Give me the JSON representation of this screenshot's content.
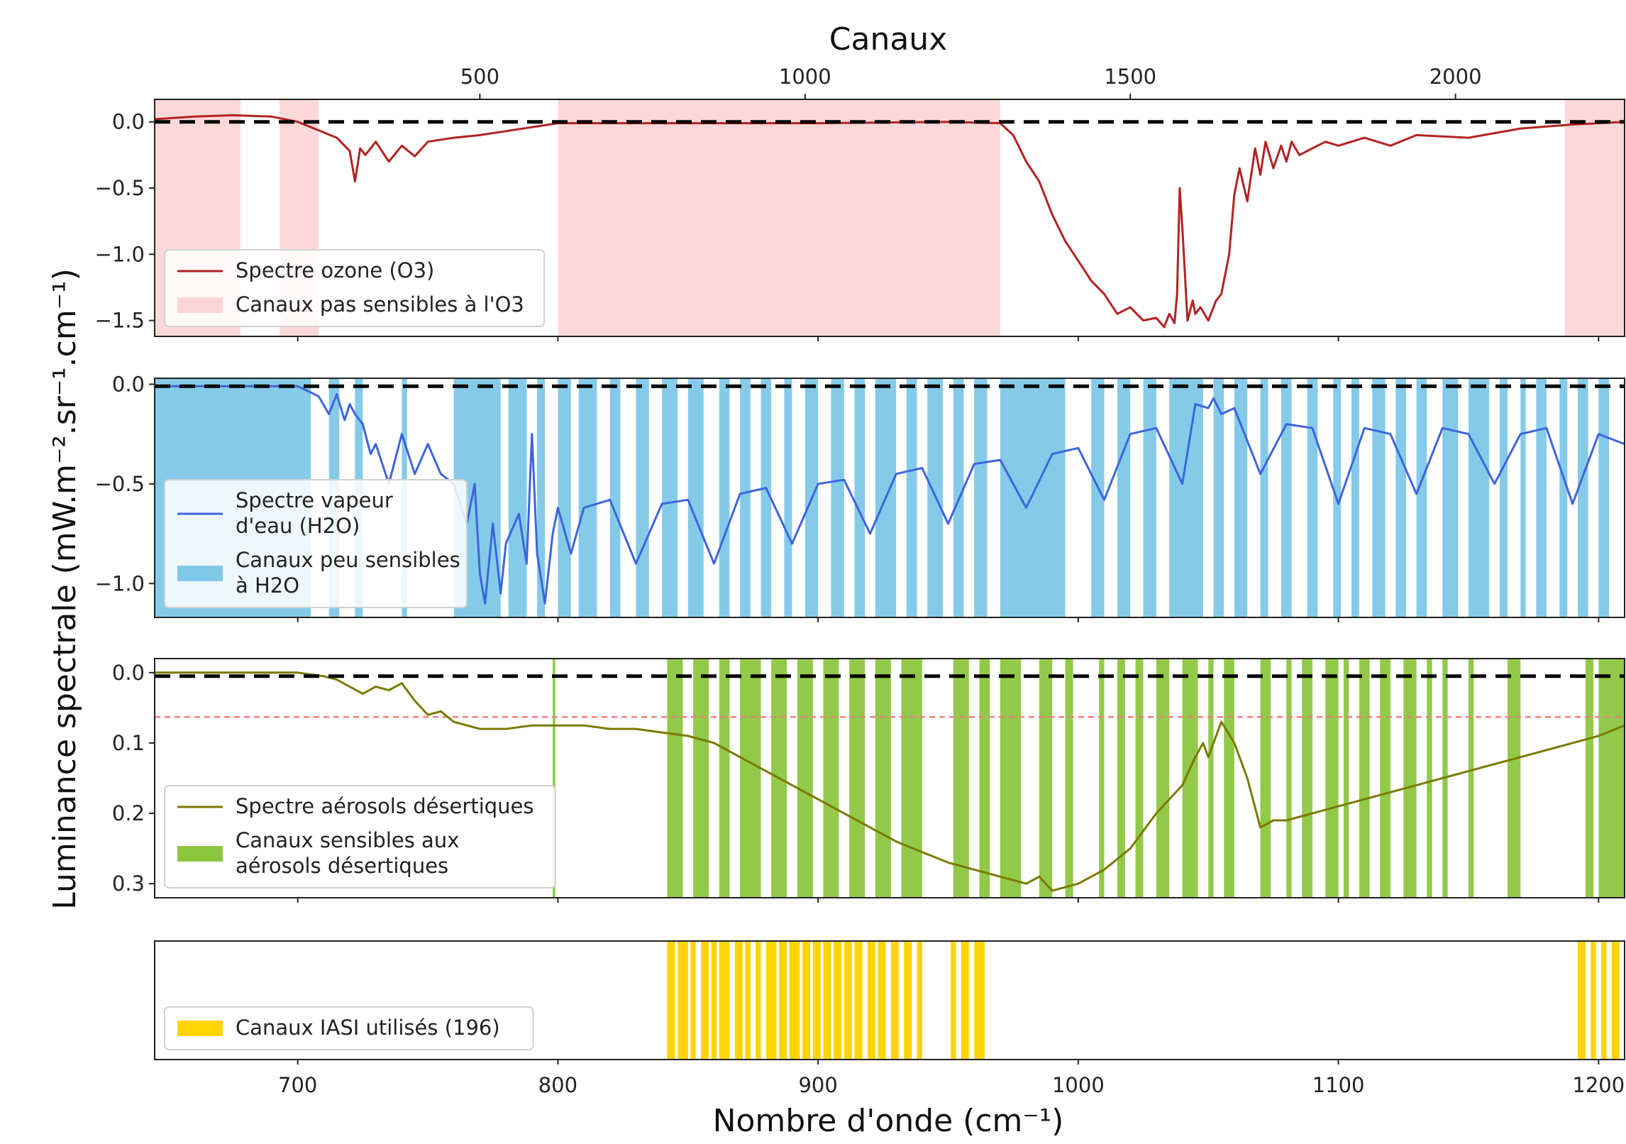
{
  "chart_data": {
    "type": "line",
    "top_axis": {
      "label": "Canaux",
      "channel_offset_cm": 645,
      "channel_step_cm": 0.25,
      "ticks": [
        {
          "channel": 500,
          "label": "500"
        },
        {
          "channel": 1000,
          "label": "1000"
        },
        {
          "channel": 1500,
          "label": "1500"
        },
        {
          "channel": 2000,
          "label": "2000"
        }
      ]
    },
    "xlabel": "Nombre d'onde (cm⁻¹)",
    "ylabel": "Luminance spectrale (mW.m⁻².sr⁻¹.cm⁻¹)",
    "xlim": [
      645,
      1210
    ],
    "x_ticks": [
      {
        "value": 700,
        "label": "700"
      },
      {
        "value": 800,
        "label": "800"
      },
      {
        "value": 900,
        "label": "900"
      },
      {
        "value": 1000,
        "label": "1000"
      },
      {
        "value": 1100,
        "label": "1100"
      },
      {
        "value": 1200,
        "label": "1200"
      }
    ],
    "panels": [
      {
        "key": "ozone",
        "ylim": [
          -1.62,
          0.17
        ],
        "inverted": false,
        "y_ticks": [
          {
            "value": 0.0,
            "label": "0.0"
          },
          {
            "value": -0.5,
            "label": "−0.5"
          },
          {
            "value": -1.0,
            "label": "−1.0"
          },
          {
            "value": -1.5,
            "label": "−1.5"
          }
        ],
        "zero_line": 0.0,
        "line_color": "#b22222",
        "band_color": "#fcd6d6",
        "band_opacity": 0.95,
        "bands": [
          [
            645,
            678
          ],
          [
            693,
            708
          ],
          [
            800,
            970
          ],
          [
            1187,
            1210
          ]
        ],
        "series": {
          "name": "Spectre ozone (O3)",
          "x": [
            645,
            660,
            675,
            690,
            700,
            710,
            715,
            720,
            722,
            724,
            726,
            730,
            735,
            740,
            745,
            750,
            760,
            770,
            780,
            790,
            800,
            850,
            900,
            950,
            970,
            975,
            980,
            985,
            990,
            995,
            1000,
            1005,
            1010,
            1015,
            1020,
            1025,
            1030,
            1033,
            1035,
            1037,
            1038,
            1039,
            1040,
            1042,
            1044,
            1045,
            1047,
            1050,
            1053,
            1055,
            1058,
            1060,
            1062,
            1065,
            1068,
            1070,
            1072,
            1075,
            1078,
            1080,
            1082,
            1085,
            1090,
            1095,
            1100,
            1110,
            1120,
            1130,
            1150,
            1170,
            1190,
            1210
          ],
          "y": [
            0.02,
            0.04,
            0.05,
            0.04,
            0.0,
            -0.08,
            -0.12,
            -0.22,
            -0.45,
            -0.2,
            -0.25,
            -0.15,
            -0.3,
            -0.18,
            -0.26,
            -0.15,
            -0.12,
            -0.1,
            -0.07,
            -0.04,
            -0.01,
            -0.01,
            -0.01,
            0.0,
            -0.01,
            -0.1,
            -0.3,
            -0.45,
            -0.7,
            -0.9,
            -1.05,
            -1.2,
            -1.3,
            -1.45,
            -1.4,
            -1.5,
            -1.48,
            -1.55,
            -1.45,
            -1.52,
            -1.3,
            -0.5,
            -0.8,
            -1.5,
            -1.35,
            -1.45,
            -1.4,
            -1.5,
            -1.35,
            -1.3,
            -1.0,
            -0.55,
            -0.35,
            -0.6,
            -0.2,
            -0.4,
            -0.15,
            -0.35,
            -0.18,
            -0.3,
            -0.15,
            -0.25,
            -0.2,
            -0.15,
            -0.18,
            -0.12,
            -0.18,
            -0.1,
            -0.12,
            -0.05,
            -0.02,
            0.0
          ]
        },
        "legend": {
          "line": "Spectre ozone (O3)",
          "band": "Canaux pas sensibles à l'O3",
          "anchor": "lower-left"
        }
      },
      {
        "key": "h2o",
        "ylim": [
          -1.17,
          0.03
        ],
        "inverted": false,
        "y_ticks": [
          {
            "value": 0.0,
            "label": "0.0"
          },
          {
            "value": -0.5,
            "label": "−0.5"
          },
          {
            "value": -1.0,
            "label": "−1.0"
          }
        ],
        "zero_line": -0.01,
        "line_color": "#3e64dc",
        "band_color": "#7ec8e8",
        "band_opacity": 0.95,
        "bands": [
          [
            645,
            705
          ],
          [
            712,
            716
          ],
          [
            722,
            725
          ],
          [
            740,
            742
          ],
          [
            760,
            778
          ],
          [
            781,
            788
          ],
          [
            792,
            795
          ],
          [
            800,
            805
          ],
          [
            808,
            815
          ],
          [
            820,
            824
          ],
          [
            830,
            835
          ],
          [
            840,
            846
          ],
          [
            850,
            856
          ],
          [
            862,
            866
          ],
          [
            870,
            874
          ],
          [
            878,
            882
          ],
          [
            887,
            890
          ],
          [
            895,
            900
          ],
          [
            905,
            910
          ],
          [
            914,
            918
          ],
          [
            922,
            930
          ],
          [
            934,
            938
          ],
          [
            942,
            948
          ],
          [
            952,
            956
          ],
          [
            960,
            965
          ],
          [
            970,
            995
          ],
          [
            1005,
            1010
          ],
          [
            1015,
            1020
          ],
          [
            1025,
            1030
          ],
          [
            1035,
            1048
          ],
          [
            1052,
            1056
          ],
          [
            1060,
            1065
          ],
          [
            1070,
            1073
          ],
          [
            1078,
            1082
          ],
          [
            1088,
            1092
          ],
          [
            1098,
            1101
          ],
          [
            1105,
            1108
          ],
          [
            1113,
            1118
          ],
          [
            1122,
            1126
          ],
          [
            1130,
            1134
          ],
          [
            1140,
            1146
          ],
          [
            1150,
            1158
          ],
          [
            1162,
            1165
          ],
          [
            1170,
            1172
          ],
          [
            1176,
            1180
          ],
          [
            1185,
            1188
          ],
          [
            1192,
            1196
          ],
          [
            1200,
            1204
          ]
        ],
        "series": {
          "name": "Spectre vapeur d'eau (H2O)",
          "x": [
            645,
            700,
            708,
            712,
            715,
            718,
            720,
            722,
            725,
            728,
            730,
            735,
            740,
            745,
            750,
            755,
            760,
            765,
            768,
            770,
            772,
            775,
            778,
            780,
            785,
            788,
            790,
            792,
            795,
            798,
            800,
            805,
            810,
            820,
            830,
            840,
            850,
            860,
            870,
            880,
            890,
            900,
            910,
            920,
            930,
            940,
            950,
            960,
            970,
            980,
            990,
            1000,
            1010,
            1020,
            1030,
            1040,
            1045,
            1050,
            1052,
            1055,
            1060,
            1070,
            1080,
            1090,
            1100,
            1110,
            1120,
            1130,
            1140,
            1150,
            1160,
            1170,
            1180,
            1190,
            1200,
            1210
          ],
          "y": [
            -0.01,
            -0.01,
            -0.06,
            -0.15,
            -0.05,
            -0.18,
            -0.1,
            -0.15,
            -0.2,
            -0.35,
            -0.3,
            -0.5,
            -0.25,
            -0.45,
            -0.3,
            -0.45,
            -0.5,
            -0.7,
            -0.5,
            -0.95,
            -1.1,
            -0.7,
            -1.05,
            -0.8,
            -0.65,
            -0.9,
            -0.25,
            -0.85,
            -1.1,
            -0.75,
            -0.62,
            -0.85,
            -0.62,
            -0.58,
            -0.9,
            -0.6,
            -0.58,
            -0.9,
            -0.55,
            -0.52,
            -0.8,
            -0.5,
            -0.48,
            -0.75,
            -0.45,
            -0.42,
            -0.7,
            -0.4,
            -0.38,
            -0.62,
            -0.35,
            -0.32,
            -0.58,
            -0.25,
            -0.22,
            -0.5,
            -0.1,
            -0.12,
            -0.07,
            -0.15,
            -0.12,
            -0.45,
            -0.2,
            -0.22,
            -0.6,
            -0.22,
            -0.25,
            -0.55,
            -0.22,
            -0.25,
            -0.5,
            -0.25,
            -0.22,
            -0.6,
            -0.25,
            -0.3
          ]
        },
        "legend": {
          "line": [
            "Spectre vapeur",
            "d'eau (H2O)"
          ],
          "band": [
            "Canaux peu sensibles",
            "à H2O"
          ],
          "anchor": "lower-left"
        }
      },
      {
        "key": "aerosol",
        "ylim": [
          0.32,
          -0.02
        ],
        "inverted": true,
        "y_ticks": [
          {
            "value": 0.0,
            "label": "0.0"
          },
          {
            "value": 0.1,
            "label": "0.1"
          },
          {
            "value": 0.2,
            "label": "0.2"
          },
          {
            "value": 0.3,
            "label": "0.3"
          }
        ],
        "zero_line": 0.005,
        "threshold_line": 0.063,
        "line_color": "#7a7a00",
        "band_color": "#8cc63f",
        "band_opacity": 0.95,
        "bands": [
          [
            798,
            799
          ],
          [
            842,
            848
          ],
          [
            852,
            858
          ],
          [
            862,
            866
          ],
          [
            870,
            878
          ],
          [
            882,
            888
          ],
          [
            892,
            898
          ],
          [
            902,
            908
          ],
          [
            912,
            918
          ],
          [
            922,
            928
          ],
          [
            932,
            940
          ],
          [
            952,
            958
          ],
          [
            962,
            966
          ],
          [
            970,
            978
          ],
          [
            985,
            990
          ],
          [
            995,
            998
          ],
          [
            1008,
            1010
          ],
          [
            1015,
            1018
          ],
          [
            1022,
            1025
          ],
          [
            1030,
            1035
          ],
          [
            1040,
            1046
          ],
          [
            1050,
            1052
          ],
          [
            1056,
            1060
          ],
          [
            1070,
            1074
          ],
          [
            1080,
            1082
          ],
          [
            1086,
            1090
          ],
          [
            1095,
            1100
          ],
          [
            1102,
            1104
          ],
          [
            1108,
            1112
          ],
          [
            1116,
            1120
          ],
          [
            1125,
            1130
          ],
          [
            1134,
            1136
          ],
          [
            1140,
            1142
          ],
          [
            1150,
            1152
          ],
          [
            1165,
            1170
          ],
          [
            1195,
            1198
          ],
          [
            1200,
            1210
          ]
        ],
        "series": {
          "name": "Spectre aérosols désertiques",
          "x": [
            645,
            700,
            710,
            715,
            720,
            725,
            730,
            735,
            740,
            745,
            750,
            755,
            760,
            770,
            780,
            790,
            800,
            810,
            820,
            830,
            840,
            850,
            860,
            870,
            880,
            890,
            900,
            910,
            920,
            930,
            940,
            950,
            960,
            970,
            980,
            985,
            990,
            1000,
            1010,
            1020,
            1030,
            1040,
            1045,
            1048,
            1050,
            1052,
            1055,
            1060,
            1065,
            1070,
            1075,
            1080,
            1090,
            1100,
            1110,
            1120,
            1130,
            1140,
            1150,
            1160,
            1170,
            1180,
            1190,
            1200,
            1210
          ],
          "y": [
            0.0,
            0.0,
            0.005,
            0.01,
            0.02,
            0.03,
            0.02,
            0.025,
            0.015,
            0.04,
            0.06,
            0.055,
            0.07,
            0.08,
            0.08,
            0.075,
            0.075,
            0.075,
            0.08,
            0.08,
            0.085,
            0.09,
            0.1,
            0.12,
            0.14,
            0.16,
            0.18,
            0.2,
            0.22,
            0.24,
            0.255,
            0.27,
            0.28,
            0.29,
            0.3,
            0.29,
            0.31,
            0.3,
            0.28,
            0.25,
            0.2,
            0.16,
            0.12,
            0.1,
            0.12,
            0.1,
            0.07,
            0.1,
            0.15,
            0.22,
            0.21,
            0.21,
            0.2,
            0.19,
            0.18,
            0.17,
            0.16,
            0.15,
            0.14,
            0.13,
            0.12,
            0.11,
            0.1,
            0.09,
            0.075
          ]
        },
        "legend": {
          "line": "Spectre aérosols désertiques",
          "band": [
            "Canaux sensibles aux",
            "aérosols désertiques"
          ],
          "anchor": "lower-left"
        }
      },
      {
        "key": "iasi",
        "ylim": [
          0,
          1
        ],
        "inverted": false,
        "y_ticks": [],
        "band_color": "#ffd400",
        "band_opacity": 1,
        "bands": [
          [
            842,
            845
          ],
          [
            846,
            850
          ],
          [
            851,
            853
          ],
          [
            855,
            858
          ],
          [
            859,
            861
          ],
          [
            862,
            866
          ],
          [
            868,
            871
          ],
          [
            872,
            874
          ],
          [
            876,
            878
          ],
          [
            880,
            884
          ],
          [
            885,
            888
          ],
          [
            889,
            893
          ],
          [
            894,
            897
          ],
          [
            898,
            901
          ],
          [
            902,
            905
          ],
          [
            906,
            909
          ],
          [
            910,
            913
          ],
          [
            914,
            917
          ],
          [
            919,
            922
          ],
          [
            923,
            926
          ],
          [
            928,
            931
          ],
          [
            933,
            936
          ],
          [
            938,
            940
          ],
          [
            951,
            953
          ],
          [
            955,
            958
          ],
          [
            960,
            964
          ],
          [
            1192,
            1195
          ],
          [
            1197,
            1199
          ],
          [
            1201,
            1203
          ],
          [
            1205,
            1208
          ]
        ],
        "legend": {
          "band": "Canaux IASI utilisés (196)",
          "anchor": "lower-left"
        }
      }
    ]
  }
}
